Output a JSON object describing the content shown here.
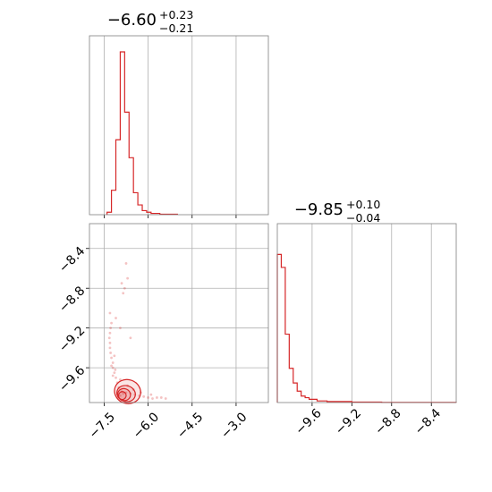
{
  "colors": {
    "series": "#d62728",
    "grid": "#b0b0b0",
    "frame": "#808080",
    "text": "#000000"
  },
  "chart_data": {
    "type": "corner",
    "parameters": [
      {
        "title": {
          "main": "−6.60",
          "sup": "+0.23",
          "sub": "−0.21"
        }
      },
      {
        "title": {
          "main": "−9.85",
          "sup": "+0.10",
          "sub": "−0.04"
        }
      }
    ],
    "panels": [
      {
        "id": "hist_p1",
        "type": "histogram",
        "xlim": [
          -8.0,
          -1.9
        ],
        "xgrid": [
          -7.5,
          -6.0,
          -4.5,
          -3.0
        ],
        "show_yticks": false,
        "bins": [
          {
            "x0": -7.4,
            "x1": -7.25,
            "h": 0.015
          },
          {
            "x0": -7.25,
            "x1": -7.1,
            "h": 0.15
          },
          {
            "x0": -7.1,
            "x1": -6.95,
            "h": 0.46
          },
          {
            "x0": -6.95,
            "x1": -6.8,
            "h": 1.0
          },
          {
            "x0": -6.8,
            "x1": -6.65,
            "h": 0.63
          },
          {
            "x0": -6.65,
            "x1": -6.5,
            "h": 0.35
          },
          {
            "x0": -6.5,
            "x1": -6.35,
            "h": 0.135
          },
          {
            "x0": -6.35,
            "x1": -6.2,
            "h": 0.06
          },
          {
            "x0": -6.2,
            "x1": -6.05,
            "h": 0.025
          },
          {
            "x0": -6.05,
            "x1": -5.9,
            "h": 0.015
          },
          {
            "x0": -5.9,
            "x1": -5.6,
            "h": 0.008
          },
          {
            "x0": -5.6,
            "x1": -5.0,
            "h": 0.003
          }
        ]
      },
      {
        "id": "hist_p2",
        "type": "histogram",
        "xlim": [
          -9.95,
          -8.15
        ],
        "xticks": [
          {
            "v": -9.6,
            "label": "−9.6"
          },
          {
            "v": -9.2,
            "label": "−9.2"
          },
          {
            "v": -8.8,
            "label": "−8.8"
          },
          {
            "v": -8.4,
            "label": "−8.4"
          }
        ],
        "show_yticks": false,
        "bins": [
          {
            "x0": -9.95,
            "x1": -9.91,
            "h": 0.91
          },
          {
            "x0": -9.91,
            "x1": -9.87,
            "h": 0.83
          },
          {
            "x0": -9.87,
            "x1": -9.83,
            "h": 0.42
          },
          {
            "x0": -9.83,
            "x1": -9.79,
            "h": 0.21
          },
          {
            "x0": -9.79,
            "x1": -9.75,
            "h": 0.12
          },
          {
            "x0": -9.75,
            "x1": -9.71,
            "h": 0.07
          },
          {
            "x0": -9.71,
            "x1": -9.67,
            "h": 0.04
          },
          {
            "x0": -9.67,
            "x1": -9.63,
            "h": 0.03
          },
          {
            "x0": -9.63,
            "x1": -9.55,
            "h": 0.02
          },
          {
            "x0": -9.55,
            "x1": -9.45,
            "h": 0.01
          },
          {
            "x0": -9.45,
            "x1": -9.2,
            "h": 0.006
          },
          {
            "x0": -9.2,
            "x1": -8.9,
            "h": 0.003
          },
          {
            "x0": -8.9,
            "x1": -8.15,
            "h": 0.001
          }
        ]
      },
      {
        "id": "joint_p1_p2",
        "type": "scatter",
        "xlim": [
          -8.0,
          -1.9
        ],
        "ylim": [
          -9.95,
          -8.15
        ],
        "xticks": [
          {
            "v": -7.5,
            "label": "−7.5"
          },
          {
            "v": -6.0,
            "label": "−6.0"
          },
          {
            "v": -4.5,
            "label": "−4.5"
          },
          {
            "v": -3.0,
            "label": "−3.0"
          }
        ],
        "yticks": [
          {
            "v": -8.4,
            "label": "−8.4"
          },
          {
            "v": -8.8,
            "label": "−8.8"
          },
          {
            "v": -9.2,
            "label": "−9.2"
          },
          {
            "v": -9.6,
            "label": "−9.6"
          }
        ],
        "points": [
          [
            -7.05,
            -9.9
          ],
          [
            -6.95,
            -9.88
          ],
          [
            -6.85,
            -9.86
          ],
          [
            -6.75,
            -9.85
          ],
          [
            -6.6,
            -9.86
          ],
          [
            -6.45,
            -9.87
          ],
          [
            -6.3,
            -9.88
          ],
          [
            -6.15,
            -9.89
          ],
          [
            -6.0,
            -9.9
          ],
          [
            -5.85,
            -9.91
          ],
          [
            -5.7,
            -9.9
          ],
          [
            -6.9,
            -9.84
          ],
          [
            -7.0,
            -9.8
          ],
          [
            -7.05,
            -9.75
          ],
          [
            -7.1,
            -9.7
          ],
          [
            -7.15,
            -9.65
          ],
          [
            -7.2,
            -9.6
          ],
          [
            -7.2,
            -9.55
          ],
          [
            -7.25,
            -9.5
          ],
          [
            -7.28,
            -9.45
          ],
          [
            -7.3,
            -9.4
          ],
          [
            -7.3,
            -9.35
          ],
          [
            -7.32,
            -9.3
          ],
          [
            -7.3,
            -9.25
          ],
          [
            -7.28,
            -9.2
          ],
          [
            -7.25,
            -9.15
          ],
          [
            -7.3,
            -9.05
          ],
          [
            -6.85,
            -8.85
          ],
          [
            -6.8,
            -8.8
          ],
          [
            -6.75,
            -8.55
          ],
          [
            -6.9,
            -8.75
          ],
          [
            -6.7,
            -8.7
          ],
          [
            -6.95,
            -9.2
          ],
          [
            -7.1,
            -9.1
          ],
          [
            -6.6,
            -9.3
          ],
          [
            -7.2,
            -9.68
          ],
          [
            -6.95,
            -9.72
          ],
          [
            -6.7,
            -9.78
          ],
          [
            -6.5,
            -9.82
          ],
          [
            -6.25,
            -9.85
          ],
          [
            -5.9,
            -9.87
          ],
          [
            -5.55,
            -9.9
          ],
          [
            -5.4,
            -9.91
          ],
          [
            -7.12,
            -9.62
          ],
          [
            -7.25,
            -9.58
          ],
          [
            -7.15,
            -9.48
          ]
        ],
        "contours": [
          {
            "rx": 0.13,
            "ry": 0.04,
            "cx": -6.88,
            "cy": -9.88
          },
          {
            "rx": 0.22,
            "ry": 0.06,
            "cx": -6.82,
            "cy": -9.87
          },
          {
            "rx": 0.32,
            "ry": 0.08,
            "cx": -6.75,
            "cy": -9.86
          },
          {
            "rx": 0.45,
            "ry": 0.12,
            "cx": -6.7,
            "cy": -9.84
          }
        ]
      }
    ]
  }
}
